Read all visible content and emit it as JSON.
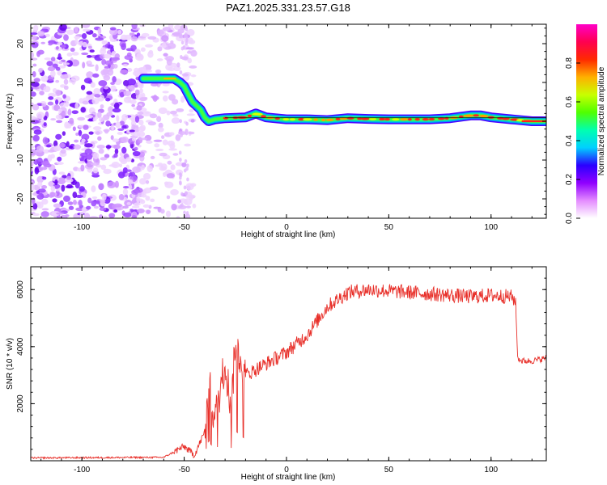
{
  "title": "PAZ1.2025.331.23.57.G18",
  "chart_data": [
    {
      "type": "heatmap",
      "xlabel": "Height of straight line (km)",
      "ylabel": "Frequency (Hz)",
      "xlim": [
        -125,
        127
      ],
      "ylim": [
        -25,
        25
      ],
      "xticks": [
        -100,
        -50,
        0,
        50,
        100
      ],
      "yticks": [
        20,
        10,
        0,
        -10,
        -20
      ],
      "noise_region_x": [
        -125,
        -70
      ],
      "track": {
        "x": [
          -70,
          -65,
          -60,
          -55,
          -52,
          -50,
          -48,
          -46,
          -44,
          -42,
          -40,
          -38,
          -35,
          -30,
          -20,
          -15,
          -10,
          0,
          10,
          20,
          30,
          40,
          50,
          60,
          70,
          80,
          90,
          95,
          100,
          110,
          120,
          127
        ],
        "frequency": [
          11,
          11,
          11,
          11,
          10,
          9,
          7,
          5,
          4,
          3,
          1,
          0,
          0.5,
          0.8,
          1,
          2,
          1,
          0.5,
          0.5,
          0.3,
          0.8,
          0.6,
          0.5,
          0.5,
          0.5,
          0.8,
          1.5,
          1.5,
          1,
          0.5,
          0,
          0
        ]
      },
      "colorbar": {
        "label": "Normalized spectral amplitude",
        "range": [
          0,
          1
        ],
        "ticks": [
          "0.0",
          "0.2",
          "0.4",
          "0.6",
          "0.8"
        ],
        "tick_values": [
          0,
          0.2,
          0.4,
          0.6,
          0.8
        ],
        "colors": [
          "#ffffff",
          "#e48cff",
          "#9000ff",
          "#2a00ff",
          "#00d0ff",
          "#00ffb0",
          "#50ff00",
          "#c8ff00",
          "#ffb000",
          "#ff2a00",
          "#ff0050",
          "#ff00c8"
        ]
      }
    },
    {
      "type": "line",
      "xlabel": "Height of straight line (km)",
      "ylabel": "SNR (10 * v/v)",
      "xlim": [
        -125,
        127
      ],
      "ylim": [
        0,
        6800
      ],
      "xticks": [
        -100,
        -50,
        0,
        50,
        100
      ],
      "yticks": [
        2000,
        4000,
        6000
      ],
      "color": "#e8302a",
      "series": [
        {
          "name": "SNR",
          "x": [
            -125,
            -60,
            -50,
            -45,
            -40,
            -38,
            -35,
            -30,
            -27,
            -25,
            -20,
            -10,
            0,
            10,
            20,
            30,
            40,
            50,
            60,
            70,
            80,
            90,
            100,
            110,
            112,
            113,
            115,
            120,
            127
          ],
          "y": [
            100,
            120,
            500,
            200,
            1000,
            2800,
            1400,
            3500,
            1800,
            4200,
            3000,
            3400,
            3800,
            4400,
            5400,
            5900,
            6000,
            5950,
            5900,
            5850,
            5800,
            5750,
            5800,
            5750,
            5600,
            3600,
            3500,
            3500,
            3600
          ]
        }
      ]
    }
  ]
}
